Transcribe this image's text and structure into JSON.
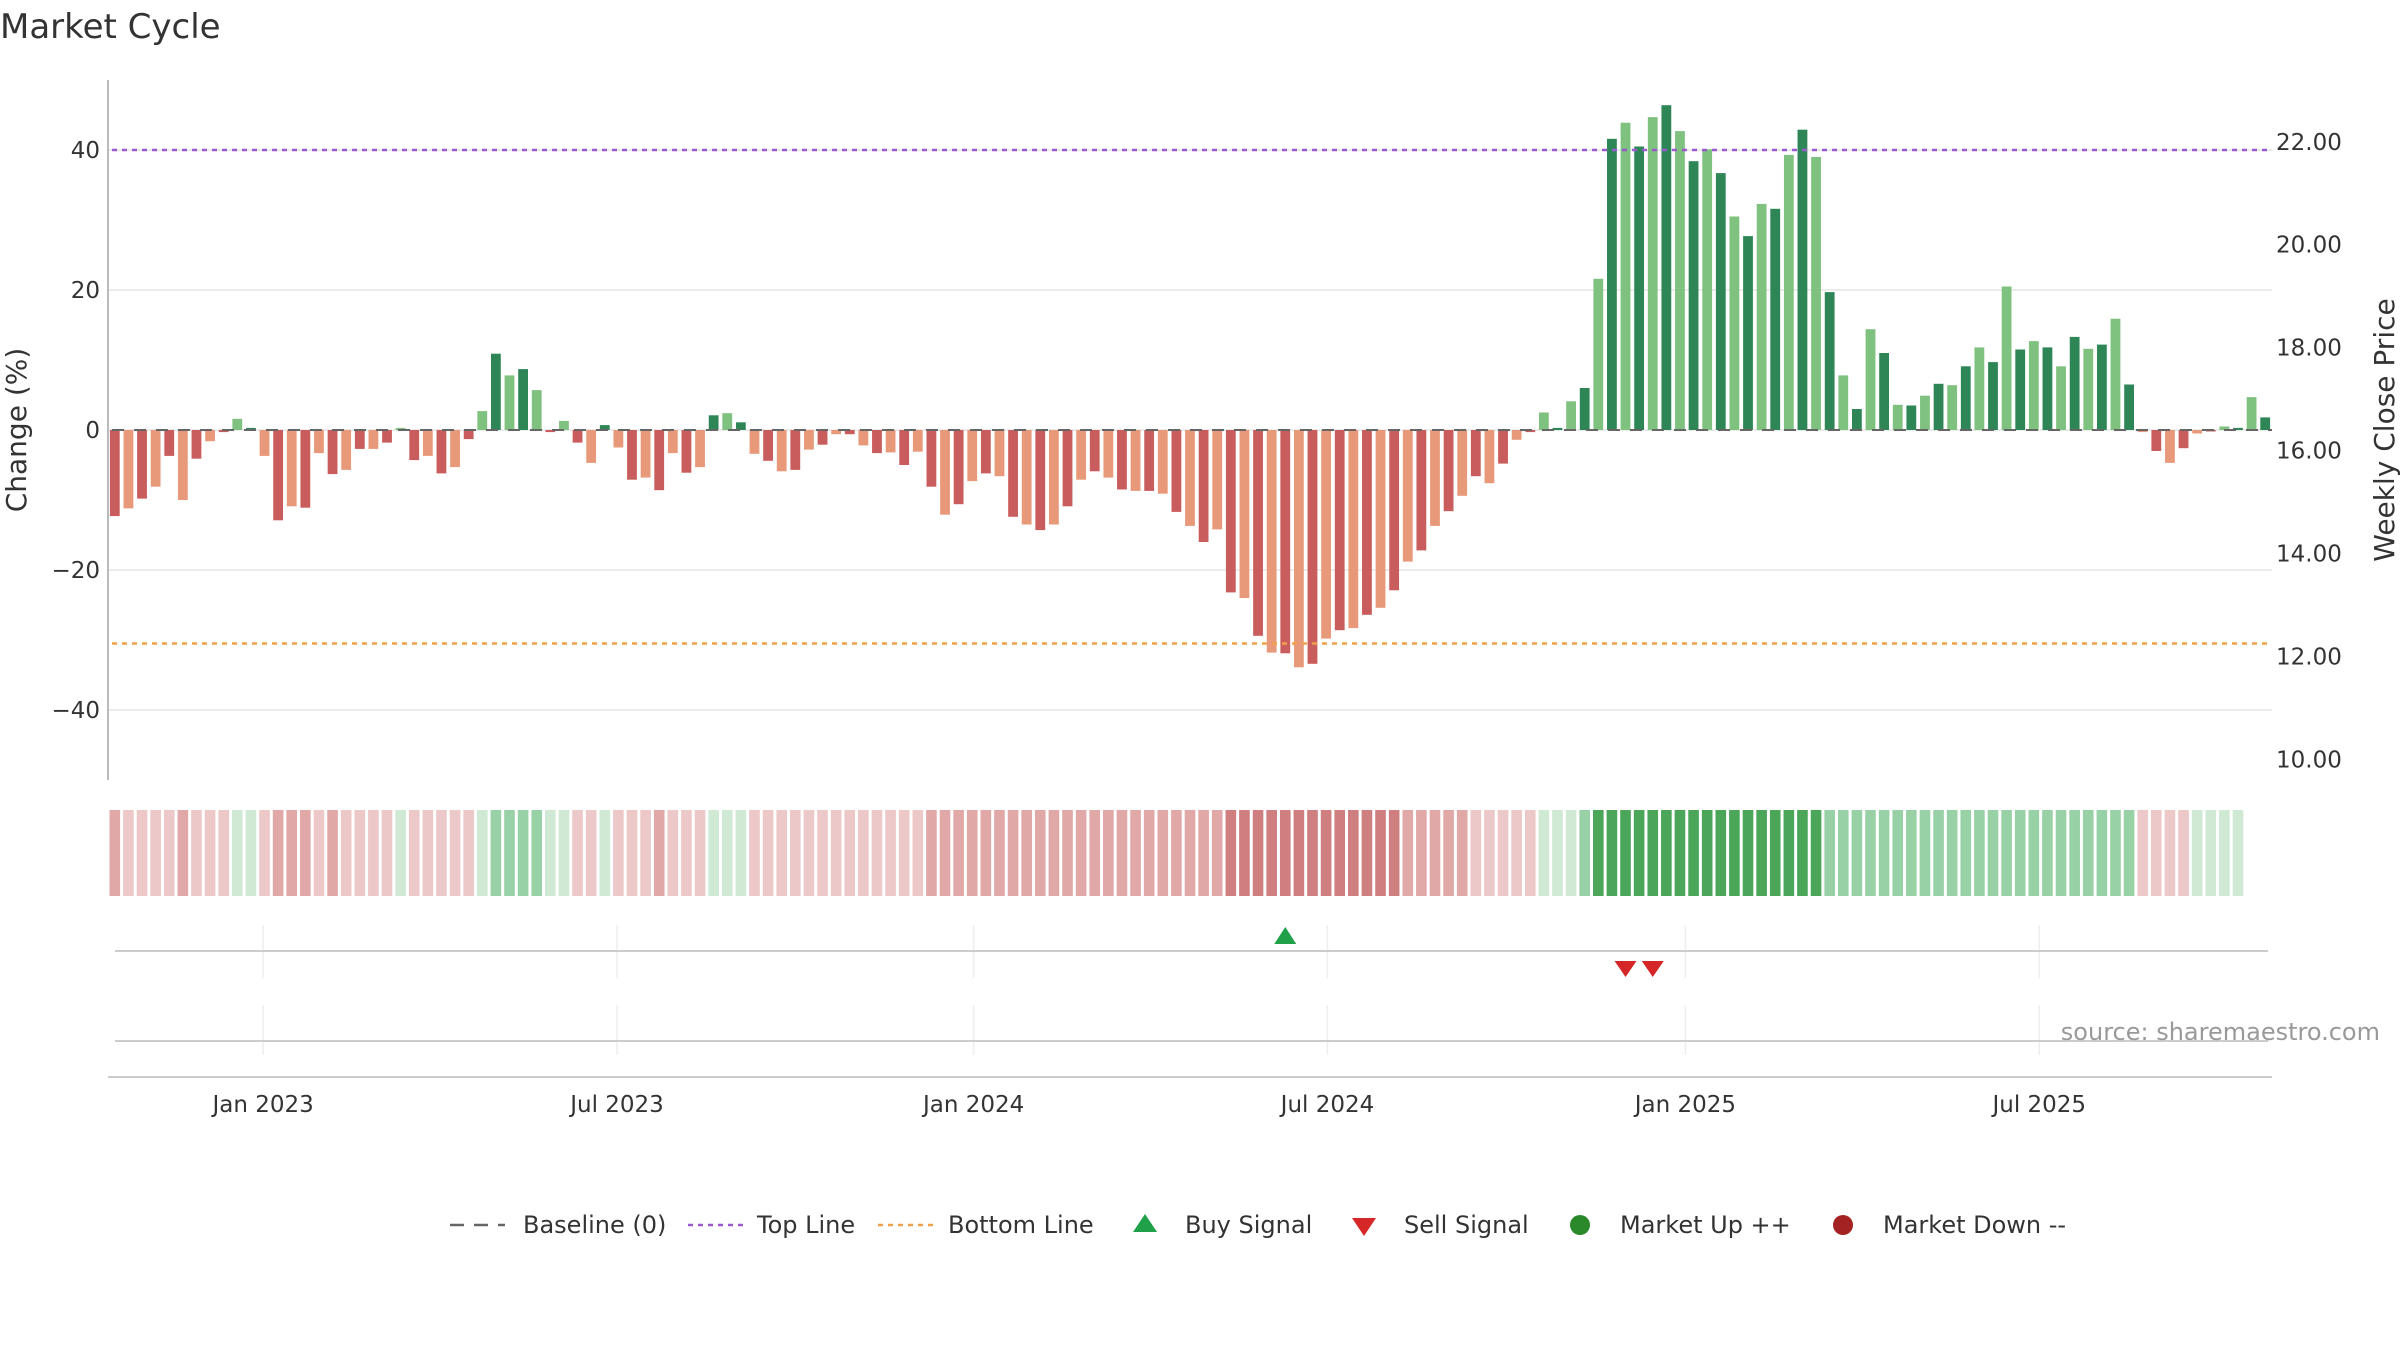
{
  "chart_data": {
    "type": "bar",
    "title": "Market Cycle",
    "ylabel_left": "Change (%)",
    "ylabel_right": "Weekly Close Price",
    "y_left_ticks": [
      "−40",
      "−20",
      "0",
      "20",
      "40"
    ],
    "y_left_tick_values": [
      -40,
      -20,
      0,
      20,
      40
    ],
    "y_left_range": [
      -50,
      50
    ],
    "y_right_ticks": [
      "10.00",
      "12.00",
      "14.00",
      "16.00",
      "18.00",
      "20.00",
      "22.00"
    ],
    "y_right_tick_values": [
      10,
      12,
      14,
      16,
      18,
      20,
      22
    ],
    "y_right_range": [
      9.6,
      23.2
    ],
    "x_ticks": [
      "Jan 2023",
      "Jul 2023",
      "Jan 2024",
      "Jul 2024",
      "Jan 2025",
      "Jul 2025"
    ],
    "x_tick_values": [
      11.4,
      37.4,
      63.6,
      89.6,
      115.9,
      141.9
    ],
    "reference_lines": {
      "baseline": 0,
      "top_line": 40.0,
      "bottom_line": -30.5
    },
    "values": [
      -12.3,
      -11.2,
      -9.8,
      -8.1,
      -3.7,
      -10.0,
      -4.1,
      -1.6,
      -0.3,
      1.6,
      0.3,
      -3.7,
      -12.9,
      -10.9,
      -11.1,
      -3.3,
      -6.3,
      -5.7,
      -2.7,
      -2.7,
      -1.8,
      0.3,
      -4.3,
      -3.7,
      -6.2,
      -5.3,
      -1.3,
      2.7,
      10.9,
      7.8,
      8.7,
      5.7,
      -0.3,
      1.3,
      -1.8,
      -4.7,
      0.7,
      -2.5,
      -7.1,
      -6.8,
      -8.6,
      -3.3,
      -6.1,
      -5.3,
      2.1,
      2.4,
      1.1,
      -3.4,
      -4.4,
      -5.9,
      -5.7,
      -2.8,
      -2.1,
      -0.6,
      -0.6,
      -2.2,
      -3.3,
      -3.2,
      -5.0,
      -3.1,
      -8.1,
      -12.1,
      -10.6,
      -7.3,
      -6.2,
      -6.6,
      -12.4,
      -13.5,
      -14.3,
      -13.5,
      -10.9,
      -7.1,
      -5.9,
      -6.8,
      -8.5,
      -8.7,
      -8.7,
      -9.1,
      -11.7,
      -13.7,
      -16.0,
      -14.2,
      -23.2,
      -24.0,
      -29.4,
      -31.8,
      -31.9,
      -33.9,
      -33.4,
      -29.8,
      -28.6,
      -28.3,
      -26.4,
      -25.4,
      -22.9,
      -18.8,
      -17.2,
      -13.7,
      -11.6,
      -9.4,
      -6.6,
      -7.6,
      -4.8,
      -1.4,
      -0.3,
      2.5,
      0.3,
      4.1,
      6.0,
      21.6,
      41.6,
      43.9,
      40.5,
      44.7,
      46.4,
      42.7,
      38.4,
      40.1,
      36.7,
      30.5,
      27.7,
      32.3,
      31.6,
      39.3,
      42.9,
      39.0,
      19.7,
      7.8,
      3.0,
      14.4,
      11.0,
      3.6,
      3.5,
      4.9,
      6.6,
      6.4,
      9.1,
      11.8,
      9.7,
      20.5,
      11.5,
      12.7,
      11.8,
      9.1,
      13.3,
      11.6,
      12.2,
      15.9,
      6.5,
      -0.3,
      -3.0,
      -4.7,
      -2.6,
      -0.5,
      -0.2,
      0.5,
      0.3,
      4.7,
      1.8
    ],
    "band_states": [
      "r2",
      "r1",
      "r1",
      "r1",
      "r1",
      "r2",
      "r1",
      "r1",
      "r1",
      "g1",
      "g1",
      "r1",
      "r2",
      "r2",
      "r2",
      "r1",
      "r2",
      "r1",
      "r1",
      "r1",
      "r1",
      "g1",
      "r1",
      "r1",
      "r1",
      "r1",
      "r1",
      "g1",
      "g2",
      "g2",
      "g2",
      "g2",
      "g1",
      "g1",
      "r1",
      "r1",
      "g1",
      "r1",
      "r1",
      "r1",
      "r2",
      "r1",
      "r1",
      "r1",
      "g1",
      "g1",
      "g1",
      "r1",
      "r1",
      "r1",
      "r1",
      "r1",
      "r1",
      "r1",
      "r1",
      "r1",
      "r1",
      "r1",
      "r1",
      "r1",
      "r2",
      "r2",
      "r2",
      "r2",
      "r2",
      "r2",
      "r2",
      "r2",
      "r2",
      "r2",
      "r2",
      "r2",
      "r2",
      "r2",
      "r2",
      "r2",
      "r2",
      "r2",
      "r2",
      "r2",
      "r2",
      "r2",
      "r3",
      "r3",
      "r3",
      "r3",
      "r3",
      "r3",
      "r3",
      "r3",
      "r3",
      "r3",
      "r3",
      "r3",
      "r3",
      "r2",
      "r2",
      "r2",
      "r2",
      "r2",
      "r1",
      "r1",
      "r1",
      "r1",
      "r1",
      "g1",
      "g1",
      "g1",
      "g2",
      "g3",
      "g3",
      "g3",
      "g3",
      "g3",
      "g3",
      "g3",
      "g3",
      "g3",
      "g3",
      "g3",
      "g3",
      "g3",
      "g3",
      "g3",
      "g3",
      "g3",
      "g2",
      "g2",
      "g2",
      "g2",
      "g2",
      "g2",
      "g2",
      "g2",
      "g2",
      "g2",
      "g2",
      "g2",
      "g2",
      "g2",
      "g2",
      "g2",
      "g2",
      "g2",
      "g2",
      "g2",
      "g2",
      "g2",
      "g2",
      "r1",
      "r1",
      "r1",
      "r1",
      "g1",
      "g1",
      "g1",
      "g1"
    ],
    "buy_signals": [
      86
    ],
    "sell_signals": [
      111,
      113
    ],
    "source": "source: sharemaestro.com",
    "legend": [
      {
        "key": "baseline",
        "label": "Baseline (0)",
        "color": "#666666"
      },
      {
        "key": "top",
        "label": "Top Line",
        "color": "#9b59d0"
      },
      {
        "key": "bottom",
        "label": "Bottom Line",
        "color": "#f0a04b"
      },
      {
        "key": "buy",
        "label": "Buy Signal",
        "color": "#21a04a"
      },
      {
        "key": "sell",
        "label": "Sell Signal",
        "color": "#d62728"
      },
      {
        "key": "up",
        "label": "Market Up ++",
        "color": "#2a8a2a"
      },
      {
        "key": "down",
        "label": "Market Down --",
        "color": "#a52222"
      }
    ],
    "colors": {
      "neg_dark": "#c95c5c",
      "neg_light": "#e8997a",
      "pos_dark": "#2e8657",
      "pos_light": "#7fc17f",
      "r1": "#ecc8c8",
      "r2": "#e1a8a8",
      "r3": "#cf7f7f",
      "g1": "#cfe9d5",
      "g2": "#99d1a6",
      "g3": "#4ba65a"
    }
  }
}
